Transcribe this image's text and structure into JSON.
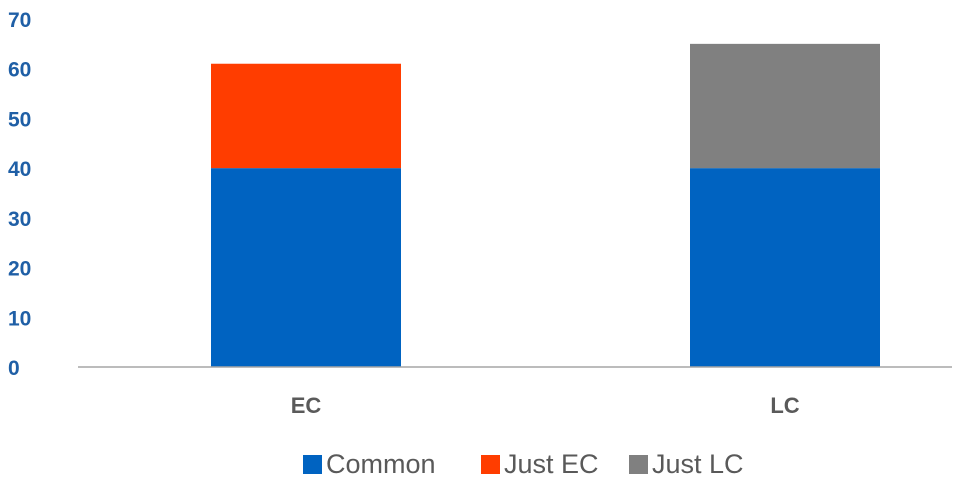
{
  "chart_data": {
    "type": "bar",
    "stacked": true,
    "categories": [
      "EC",
      "LC"
    ],
    "series": [
      {
        "name": "Common",
        "values": [
          40,
          40
        ],
        "color": "#0063C1"
      },
      {
        "name": "Just EC",
        "values": [
          21,
          0
        ],
        "color": "#FF3D00"
      },
      {
        "name": "Just LC",
        "values": [
          0,
          25
        ],
        "color": "#808080"
      }
    ],
    "ylim": [
      0,
      70
    ],
    "yticks": [
      "0",
      "10",
      "20",
      "30",
      "40",
      "50",
      "60",
      "70"
    ],
    "grid": false,
    "legend": "bottom",
    "colors": {
      "ytick": "#1F5FA6",
      "xtick": "#5A5A5A",
      "axis": "#A6A6A6",
      "legend_text": "#595959"
    }
  }
}
